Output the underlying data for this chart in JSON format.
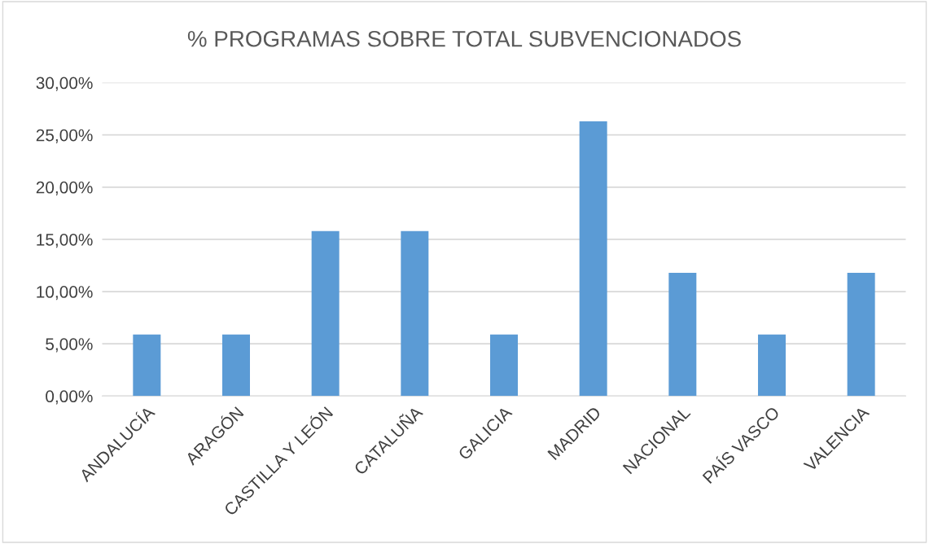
{
  "chart_data": {
    "type": "bar",
    "title": "% PROGRAMAS SOBRE TOTAL SUBVENCIONADOS",
    "categories": [
      "ANDALUCÍA",
      "ARAGÓN",
      "CASTILLA Y LEÓN",
      "CATALUÑA",
      "GALICIA",
      "MADRID",
      "NACIONAL",
      "PAÍS VASCO",
      "VALENCIA"
    ],
    "values": [
      5.9,
      5.9,
      15.8,
      15.8,
      5.9,
      26.3,
      11.8,
      5.9,
      11.8
    ],
    "color": "#5b9bd5",
    "ylim": [
      0,
      30
    ],
    "yticks": [
      {
        "value": 0,
        "label": "0,00%"
      },
      {
        "value": 5,
        "label": "5,00%"
      },
      {
        "value": 10,
        "label": "10,00%"
      },
      {
        "value": 15,
        "label": "15,00%"
      },
      {
        "value": 20,
        "label": "20,00%"
      },
      {
        "value": 25,
        "label": "25,00%"
      },
      {
        "value": 30,
        "label": "30,00%"
      }
    ],
    "grid": "y",
    "legend": false
  }
}
